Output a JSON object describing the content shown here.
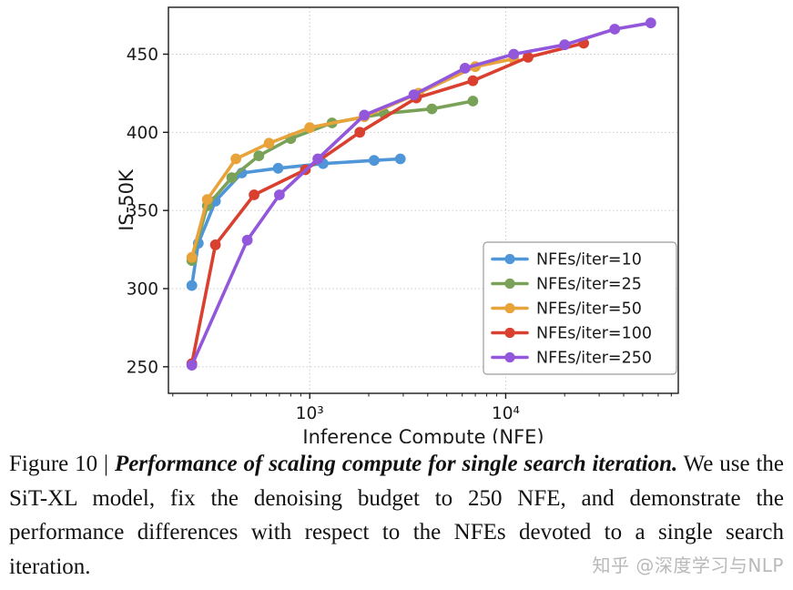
{
  "caption": {
    "prefix": "Figure 10 | ",
    "emphasis": "Performance of scaling compute for single search iteration.",
    "body": "  We use the SiT-XL model, fix the denoising budget to 250 NFE, and demonstrate the performance differences with respect to the NFEs devoted to a single search iteration."
  },
  "watermark": "知乎 @深度学习与NLP",
  "chart_data": {
    "type": "line",
    "title": "",
    "xlabel": "Inference Compute (NFE)",
    "ylabel": "IS-50K",
    "x_scale": "log",
    "xlim": [
      190,
      76000
    ],
    "ylim": [
      233,
      480
    ],
    "yticks": [
      250,
      300,
      350,
      400,
      450
    ],
    "xticks": [
      1000,
      10000
    ],
    "xtick_labels": [
      "10³",
      "10⁴"
    ],
    "grid": true,
    "legend_position": "lower right",
    "series": [
      {
        "name": "NFEs/iter=10",
        "color": "#4f96d8",
        "x": [
          250,
          270,
          330,
          450,
          690,
          1170,
          2130,
          2900
        ],
        "y": [
          302,
          329,
          356,
          374,
          377,
          380,
          382,
          383
        ]
      },
      {
        "name": "NFEs/iter=25",
        "color": "#79a258",
        "x": [
          250,
          300,
          400,
          550,
          800,
          1300,
          2400,
          4200,
          6800
        ],
        "y": [
          318,
          353,
          371,
          385,
          396,
          406,
          412,
          415,
          420
        ]
      },
      {
        "name": "NFEs/iter=50",
        "color": "#e8a33a",
        "x": [
          250,
          300,
          420,
          620,
          1000,
          1900,
          3600,
          7000,
          11000
        ],
        "y": [
          320,
          357,
          383,
          393,
          403,
          410,
          425,
          442,
          447
        ]
      },
      {
        "name": "NFEs/iter=100",
        "color": "#da402f",
        "x": [
          250,
          330,
          520,
          950,
          1800,
          3500,
          6800,
          13000,
          25000
        ],
        "y": [
          252,
          328,
          360,
          376,
          400,
          422,
          433,
          448,
          457
        ]
      },
      {
        "name": "NFEs/iter=250",
        "color": "#9257db",
        "x": [
          250,
          480,
          700,
          1100,
          1900,
          3400,
          6200,
          11000,
          20000,
          36000,
          55000
        ],
        "y": [
          251,
          331,
          360,
          383,
          411,
          424,
          441,
          450,
          456,
          466,
          470
        ]
      }
    ]
  }
}
